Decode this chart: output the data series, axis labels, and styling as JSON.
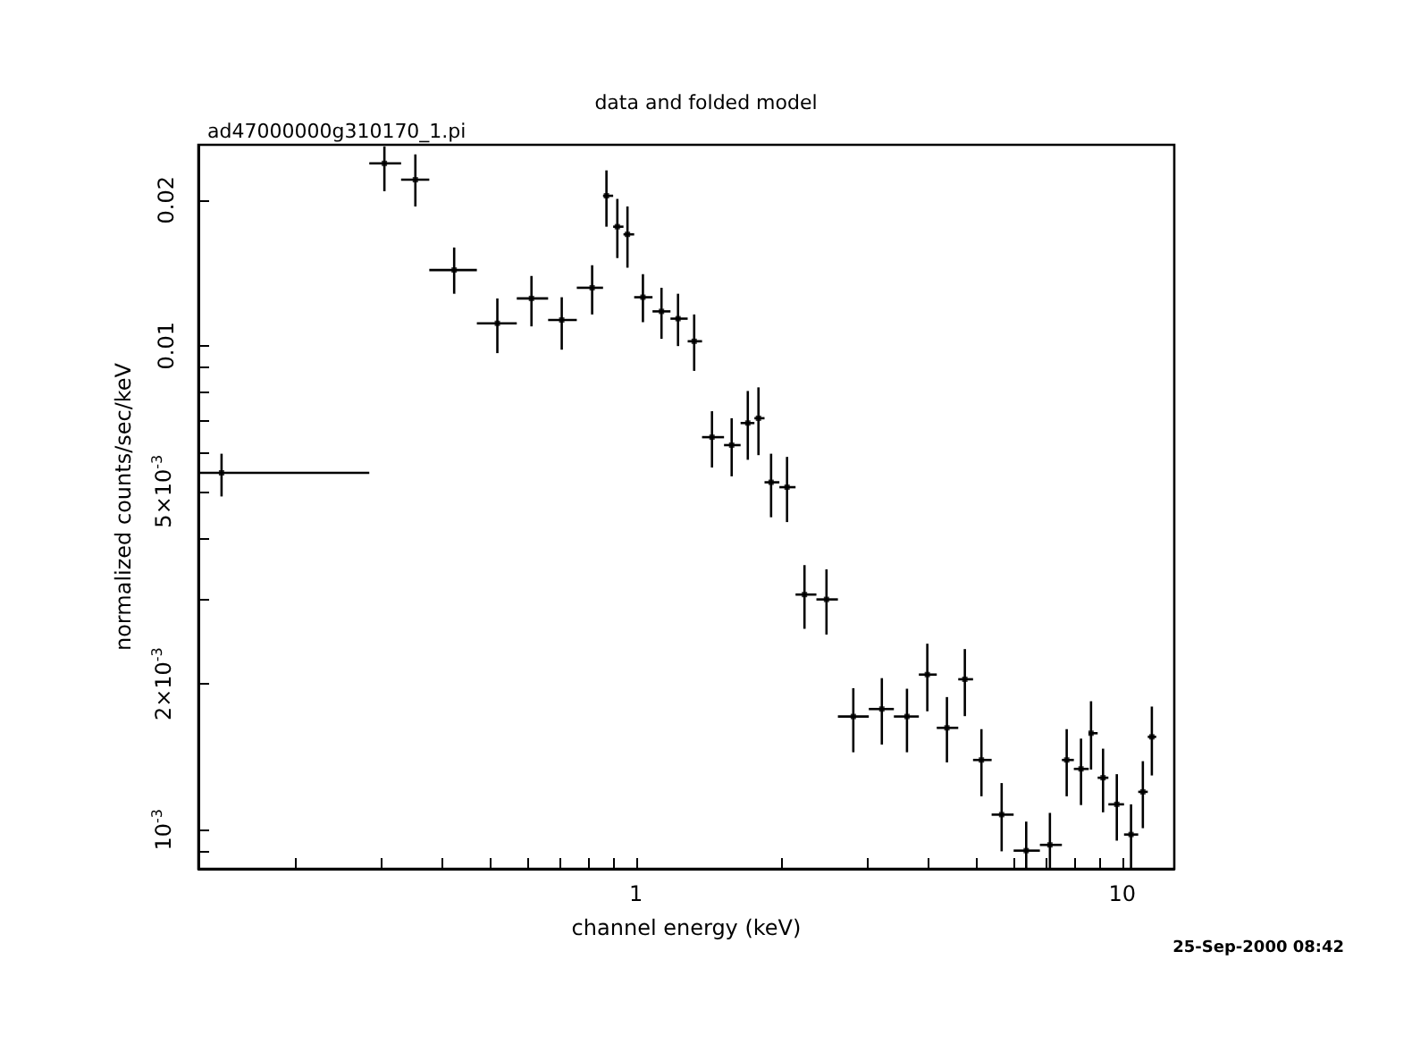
{
  "chart_data": {
    "type": "scatter",
    "title": "data and folded model",
    "subtitle": "ad47000000g310170_1.pi",
    "xlabel": "channel energy (keV)",
    "ylabel": "normalized counts/sec/keV",
    "annotations": [
      "25-Sep-2000 08:42"
    ],
    "log": "xy",
    "color": "#000000",
    "xlim": [
      0.126,
      12.8
    ],
    "ylim": [
      0.00083,
      0.026
    ],
    "xticks": [
      {
        "value": 0.2,
        "label": null
      },
      {
        "value": 0.3,
        "label": null
      },
      {
        "value": 0.4,
        "label": null
      },
      {
        "value": 0.5,
        "label": null
      },
      {
        "value": 0.6,
        "label": null
      },
      {
        "value": 0.7,
        "label": null
      },
      {
        "value": 0.8,
        "label": null
      },
      {
        "value": 0.9,
        "label": null
      },
      1,
      {
        "value": 2,
        "label": null
      },
      {
        "value": 3,
        "label": null
      },
      {
        "value": 4,
        "label": null
      },
      {
        "value": 5,
        "label": null
      },
      {
        "value": 6,
        "label": null
      },
      {
        "value": 7,
        "label": null
      },
      {
        "value": 8,
        "label": null
      },
      {
        "value": 9,
        "label": null
      },
      10
    ],
    "yticks": [
      {
        "value": 0.0009,
        "label": null
      },
      {
        "value": 0.001,
        "label": "10$^{-3}$"
      },
      {
        "value": 0.002,
        "label": "2×10$^{-3}$"
      },
      {
        "value": 0.003,
        "label": null
      },
      {
        "value": 0.004,
        "label": null
      },
      {
        "value": 0.005,
        "label": "5×10$^{-3}$"
      },
      {
        "value": 0.006,
        "label": null
      },
      {
        "value": 0.007,
        "label": null
      },
      {
        "value": 0.008,
        "label": null
      },
      {
        "value": 0.009,
        "label": null
      },
      0.01,
      0.02
    ],
    "x": [
      0.1406,
      0.304,
      0.352,
      0.423,
      0.519,
      0.61,
      0.704,
      0.813,
      0.87,
      0.916,
      0.961,
      1.034,
      1.129,
      1.221,
      1.318,
      1.434,
      1.574,
      1.699,
      1.787,
      1.897,
      2.046,
      2.222,
      2.466,
      2.8,
      3.205,
      3.61,
      3.975,
      4.362,
      4.748,
      5.136,
      5.652,
      6.349,
      7.103,
      7.691,
      8.23,
      8.63,
      9.135,
      9.75,
      10.43,
      11.03,
      11.51
    ],
    "values": [
      0.00546,
      0.0238,
      0.02202,
      0.01433,
      0.01112,
      0.01252,
      0.0113,
      0.01317,
      0.0204,
      0.01761,
      0.01698,
      0.01259,
      0.01177,
      0.01137,
      0.01021,
      0.00647,
      0.00623,
      0.00692,
      0.00708,
      0.00522,
      0.0051,
      0.00306,
      0.00299,
      0.001713,
      0.001775,
      0.001713,
      0.002091,
      0.001623,
      0.002045,
      0.001393,
      0.001074,
      0.000905,
      0.00093,
      0.001393,
      0.001335,
      0.001582,
      0.00128,
      0.001128,
      0.000977,
      0.001197,
      0.001555
    ],
    "xerrors": [
      [
        0.126,
        0.283
      ],
      [
        0.283,
        0.329
      ],
      [
        0.329,
        0.376
      ],
      [
        0.376,
        0.471
      ],
      [
        0.471,
        0.569
      ],
      [
        0.569,
        0.66
      ],
      [
        0.66,
        0.756
      ],
      [
        0.756,
        0.856
      ],
      [
        0.856,
        0.898
      ],
      [
        0.898,
        0.943
      ],
      [
        0.943,
        0.992
      ],
      [
        0.992,
        1.082
      ],
      [
        1.082,
        1.178
      ],
      [
        1.178,
        1.278
      ],
      [
        1.278,
        1.368
      ],
      [
        1.368,
        1.518
      ],
      [
        1.518,
        1.642
      ],
      [
        1.642,
        1.753
      ],
      [
        1.753,
        1.839
      ],
      [
        1.839,
        1.973
      ],
      [
        1.973,
        2.13
      ],
      [
        2.13,
        2.351
      ],
      [
        2.351,
        2.603
      ],
      [
        2.603,
        3.013
      ],
      [
        3.013,
        3.393
      ],
      [
        3.393,
        3.819
      ],
      [
        3.819,
        4.157
      ],
      [
        4.157,
        4.602
      ],
      [
        4.602,
        4.936
      ],
      [
        4.936,
        5.39
      ],
      [
        5.39,
        5.982
      ],
      [
        5.982,
        6.774
      ],
      [
        6.774,
        7.518
      ],
      [
        7.518,
        7.956
      ],
      [
        7.956,
        8.537
      ],
      [
        8.537,
        8.905
      ],
      [
        8.905,
        9.369
      ],
      [
        9.369,
        10.09
      ],
      [
        10.09,
        10.79
      ],
      [
        10.79,
        11.29
      ],
      [
        11.29,
        11.75
      ]
    ],
    "errors": [
      [
        0.00488,
        0.00598
      ],
      [
        0.02085,
        0.0258
      ],
      [
        0.01939,
        0.02484
      ],
      [
        0.0128,
        0.01595
      ],
      [
        0.00965,
        0.01252
      ],
      [
        0.01096,
        0.01393
      ],
      [
        0.00981,
        0.01259
      ],
      [
        0.0116,
        0.01466
      ],
      [
        0.01761,
        0.02302
      ],
      [
        0.01517,
        0.0201
      ],
      [
        0.01449,
        0.01939
      ],
      [
        0.01118,
        0.01405
      ],
      [
        0.01033,
        0.01317
      ],
      [
        0.00998,
        0.0128
      ],
      [
        0.00887,
        0.0116
      ],
      [
        0.0056,
        0.00732
      ],
      [
        0.00537,
        0.00708
      ],
      [
        0.00581,
        0.00806
      ],
      [
        0.00594,
        0.0082
      ],
      [
        0.00442,
        0.00598
      ],
      [
        0.00432,
        0.00589
      ],
      [
        0.0026,
        0.00352
      ],
      [
        0.00253,
        0.00345
      ],
      [
        0.001445,
        0.00196
      ],
      [
        0.001499,
        0.002056
      ],
      [
        0.001445,
        0.001955
      ],
      [
        0.001756,
        0.002422
      ],
      [
        0.001377,
        0.001879
      ],
      [
        0.001716,
        0.002361
      ],
      [
        0.001172,
        0.001613
      ],
      [
        0.000902,
        0.001248
      ],
      [
        0.00083,
        0.001039
      ],
      [
        0.00083,
        0.001083
      ],
      [
        0.001172,
        0.001613
      ],
      [
        0.001124,
        0.001542
      ],
      [
        0.001331,
        0.001842
      ],
      [
        0.001086,
        0.00147
      ],
      [
        0.000949,
        0.001302
      ],
      [
        0.00083,
        0.001128
      ],
      [
        0.001007,
        0.001385
      ],
      [
        0.001294,
        0.001796
      ]
    ]
  }
}
